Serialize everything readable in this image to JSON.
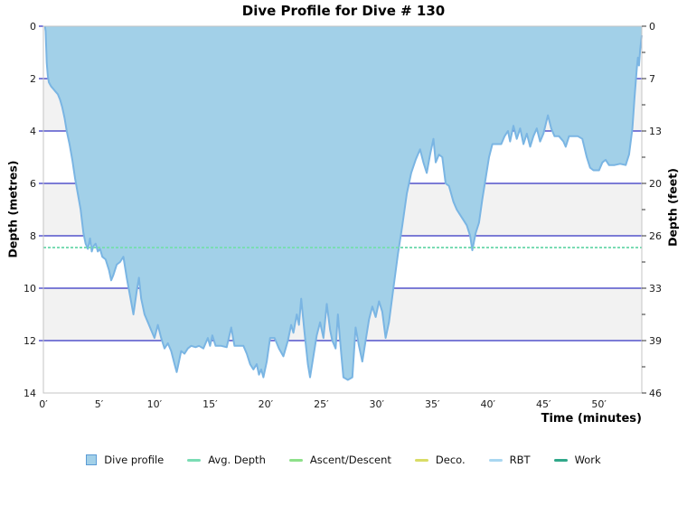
{
  "title": "Dive Profile for Dive # 130",
  "axes": {
    "left": {
      "label": "Depth (metres)",
      "ticks": [
        "0",
        "2",
        "4",
        "6",
        "8",
        "10",
        "12",
        "14"
      ]
    },
    "right": {
      "label": "Depth (feet)",
      "ticks": [
        "0",
        "7",
        "13",
        "20",
        "26",
        "33",
        "39",
        "46"
      ]
    },
    "x": {
      "label": "Time (minutes)",
      "ticks": [
        "0′",
        "5′",
        "10′",
        "15′",
        "20′",
        "25′",
        "30′",
        "35′",
        "40′",
        "45′",
        "50′"
      ]
    }
  },
  "legend": {
    "items": [
      {
        "label": "Dive profile",
        "swatch": "area",
        "color": "#a2d0e8",
        "border": "#5b9bd5"
      },
      {
        "label": "Avg. Depth",
        "swatch": "line",
        "color": "#7adcb4"
      },
      {
        "label": "Ascent/Descent",
        "swatch": "line",
        "color": "#8ee08a"
      },
      {
        "label": "Deco.",
        "swatch": "line",
        "color": "#d9dc66"
      },
      {
        "label": "RBT",
        "swatch": "line",
        "color": "#a9d7f1"
      },
      {
        "label": "Work",
        "swatch": "line",
        "color": "#31a88a"
      }
    ]
  },
  "colors": {
    "area_fill": "#a2d0e8",
    "area_stroke": "#7ab5e3",
    "gridline": "#0000b4",
    "band_grey": "#f2f2f2",
    "avg_line": "#7adcb4",
    "frame": "#c4c4c4",
    "tick": "#333333"
  },
  "chart_data": {
    "type": "area",
    "title": "Dive Profile for Dive # 130",
    "xlabel": "Time (minutes)",
    "ylabel_left": "Depth (metres)",
    "ylabel_right": "Depth (feet)",
    "x_range_min": [
      0,
      53.85
    ],
    "depth_range_m": [
      0,
      14
    ],
    "x_tick_interval_min": 5,
    "y_tick_interval_m": 2,
    "grid": "horizontal-only",
    "bands_grey_m": [
      [
        2,
        4
      ],
      [
        6,
        8
      ],
      [
        10,
        12
      ]
    ],
    "legend_position": "bottom",
    "avg_depth_m": 8.45,
    "max_depth_m": 13.5,
    "series": [
      {
        "name": "Dive profile",
        "points": [
          [
            0.15,
            0
          ],
          [
            0.2,
            0.2
          ],
          [
            0.25,
            0.8
          ],
          [
            0.3,
            1.4
          ],
          [
            0.4,
            1.9
          ],
          [
            0.5,
            2.15
          ],
          [
            0.7,
            2.3
          ],
          [
            0.9,
            2.4
          ],
          [
            1.1,
            2.5
          ],
          [
            1.3,
            2.6
          ],
          [
            1.5,
            2.8
          ],
          [
            1.7,
            3.1
          ],
          [
            1.9,
            3.5
          ],
          [
            2.1,
            4.0
          ],
          [
            2.35,
            4.5
          ],
          [
            2.6,
            5.1
          ],
          [
            2.85,
            5.8
          ],
          [
            3.1,
            6.4
          ],
          [
            3.35,
            7.0
          ],
          [
            3.6,
            7.9
          ],
          [
            3.8,
            8.3
          ],
          [
            4.0,
            8.5
          ],
          [
            4.2,
            8.1
          ],
          [
            4.35,
            8.6
          ],
          [
            4.5,
            8.4
          ],
          [
            4.7,
            8.3
          ],
          [
            4.9,
            8.6
          ],
          [
            5.1,
            8.5
          ],
          [
            5.3,
            8.8
          ],
          [
            5.6,
            8.9
          ],
          [
            5.9,
            9.3
          ],
          [
            6.1,
            9.7
          ],
          [
            6.3,
            9.5
          ],
          [
            6.6,
            9.1
          ],
          [
            6.9,
            9.0
          ],
          [
            7.2,
            8.8
          ],
          [
            7.5,
            9.6
          ],
          [
            7.8,
            10.3
          ],
          [
            8.1,
            11.0
          ],
          [
            8.4,
            10.1
          ],
          [
            8.6,
            9.6
          ],
          [
            8.8,
            10.4
          ],
          [
            9.1,
            11.0
          ],
          [
            9.4,
            11.3
          ],
          [
            9.7,
            11.6
          ],
          [
            10.0,
            11.9
          ],
          [
            10.3,
            11.4
          ],
          [
            10.6,
            11.9
          ],
          [
            10.9,
            12.3
          ],
          [
            11.2,
            12.1
          ],
          [
            11.5,
            12.4
          ],
          [
            11.8,
            12.9
          ],
          [
            12.0,
            13.2
          ],
          [
            12.2,
            12.8
          ],
          [
            12.4,
            12.4
          ],
          [
            12.7,
            12.5
          ],
          [
            13.0,
            12.3
          ],
          [
            13.3,
            12.2
          ],
          [
            13.7,
            12.25
          ],
          [
            14.0,
            12.2
          ],
          [
            14.4,
            12.3
          ],
          [
            14.8,
            11.9
          ],
          [
            15.0,
            12.2
          ],
          [
            15.2,
            11.8
          ],
          [
            15.5,
            12.2
          ],
          [
            16.0,
            12.2
          ],
          [
            16.5,
            12.25
          ],
          [
            16.9,
            11.5
          ],
          [
            17.2,
            12.2
          ],
          [
            17.6,
            12.2
          ],
          [
            18.0,
            12.2
          ],
          [
            18.3,
            12.5
          ],
          [
            18.6,
            12.9
          ],
          [
            18.9,
            13.1
          ],
          [
            19.2,
            12.9
          ],
          [
            19.4,
            13.3
          ],
          [
            19.6,
            13.1
          ],
          [
            19.8,
            13.4
          ],
          [
            20.1,
            12.8
          ],
          [
            20.4,
            11.9
          ],
          [
            20.8,
            11.9
          ],
          [
            21.2,
            12.3
          ],
          [
            21.6,
            12.6
          ],
          [
            22.0,
            12.0
          ],
          [
            22.3,
            11.4
          ],
          [
            22.5,
            11.7
          ],
          [
            22.8,
            11.0
          ],
          [
            23.0,
            11.4
          ],
          [
            23.2,
            10.4
          ],
          [
            23.5,
            11.7
          ],
          [
            23.8,
            12.9
          ],
          [
            24.0,
            13.4
          ],
          [
            24.3,
            12.6
          ],
          [
            24.6,
            11.8
          ],
          [
            24.9,
            11.3
          ],
          [
            25.2,
            11.9
          ],
          [
            25.5,
            10.6
          ],
          [
            25.8,
            11.6
          ],
          [
            26.0,
            12.0
          ],
          [
            26.3,
            12.3
          ],
          [
            26.5,
            11.0
          ],
          [
            26.8,
            12.5
          ],
          [
            27.0,
            13.4
          ],
          [
            27.4,
            13.5
          ],
          [
            27.8,
            13.4
          ],
          [
            28.1,
            11.5
          ],
          [
            28.4,
            12.2
          ],
          [
            28.7,
            12.8
          ],
          [
            29.0,
            12.0
          ],
          [
            29.3,
            11.2
          ],
          [
            29.6,
            10.7
          ],
          [
            29.9,
            11.1
          ],
          [
            30.2,
            10.5
          ],
          [
            30.5,
            10.9
          ],
          [
            30.8,
            11.9
          ],
          [
            31.1,
            11.3
          ],
          [
            31.5,
            10.0
          ],
          [
            31.9,
            8.7
          ],
          [
            32.3,
            7.6
          ],
          [
            32.7,
            6.4
          ],
          [
            33.1,
            5.6
          ],
          [
            33.5,
            5.1
          ],
          [
            33.9,
            4.7
          ],
          [
            34.2,
            5.2
          ],
          [
            34.5,
            5.6
          ],
          [
            34.8,
            4.9
          ],
          [
            35.1,
            4.3
          ],
          [
            35.3,
            5.2
          ],
          [
            35.6,
            4.9
          ],
          [
            35.9,
            5.0
          ],
          [
            36.2,
            6.0
          ],
          [
            36.5,
            6.1
          ],
          [
            36.9,
            6.7
          ],
          [
            37.2,
            7.0
          ],
          [
            37.5,
            7.2
          ],
          [
            37.8,
            7.4
          ],
          [
            38.1,
            7.6
          ],
          [
            38.4,
            8.0
          ],
          [
            38.6,
            8.55
          ],
          [
            38.9,
            7.9
          ],
          [
            39.2,
            7.5
          ],
          [
            39.5,
            6.6
          ],
          [
            39.8,
            5.8
          ],
          [
            40.1,
            5.0
          ],
          [
            40.4,
            4.5
          ],
          [
            40.8,
            4.5
          ],
          [
            41.2,
            4.5
          ],
          [
            41.5,
            4.2
          ],
          [
            41.8,
            4.0
          ],
          [
            42.0,
            4.4
          ],
          [
            42.3,
            3.8
          ],
          [
            42.6,
            4.3
          ],
          [
            42.9,
            3.9
          ],
          [
            43.2,
            4.5
          ],
          [
            43.5,
            4.1
          ],
          [
            43.8,
            4.6
          ],
          [
            44.1,
            4.2
          ],
          [
            44.4,
            3.9
          ],
          [
            44.7,
            4.4
          ],
          [
            45.0,
            4.1
          ],
          [
            45.4,
            3.4
          ],
          [
            45.7,
            3.9
          ],
          [
            46.0,
            4.2
          ],
          [
            46.4,
            4.2
          ],
          [
            46.8,
            4.4
          ],
          [
            47.0,
            4.6
          ],
          [
            47.3,
            4.2
          ],
          [
            47.7,
            4.2
          ],
          [
            48.1,
            4.2
          ],
          [
            48.5,
            4.3
          ],
          [
            48.9,
            5.0
          ],
          [
            49.2,
            5.4
          ],
          [
            49.5,
            5.5
          ],
          [
            50.0,
            5.5
          ],
          [
            50.3,
            5.2
          ],
          [
            50.6,
            5.1
          ],
          [
            50.9,
            5.3
          ],
          [
            51.4,
            5.3
          ],
          [
            51.9,
            5.25
          ],
          [
            52.4,
            5.3
          ],
          [
            52.7,
            4.9
          ],
          [
            53.0,
            3.9
          ],
          [
            53.2,
            2.7
          ],
          [
            53.4,
            1.6
          ],
          [
            53.5,
            1.2
          ],
          [
            53.6,
            1.5
          ],
          [
            53.7,
            0.9
          ],
          [
            53.85,
            0.35
          ]
        ]
      }
    ]
  }
}
